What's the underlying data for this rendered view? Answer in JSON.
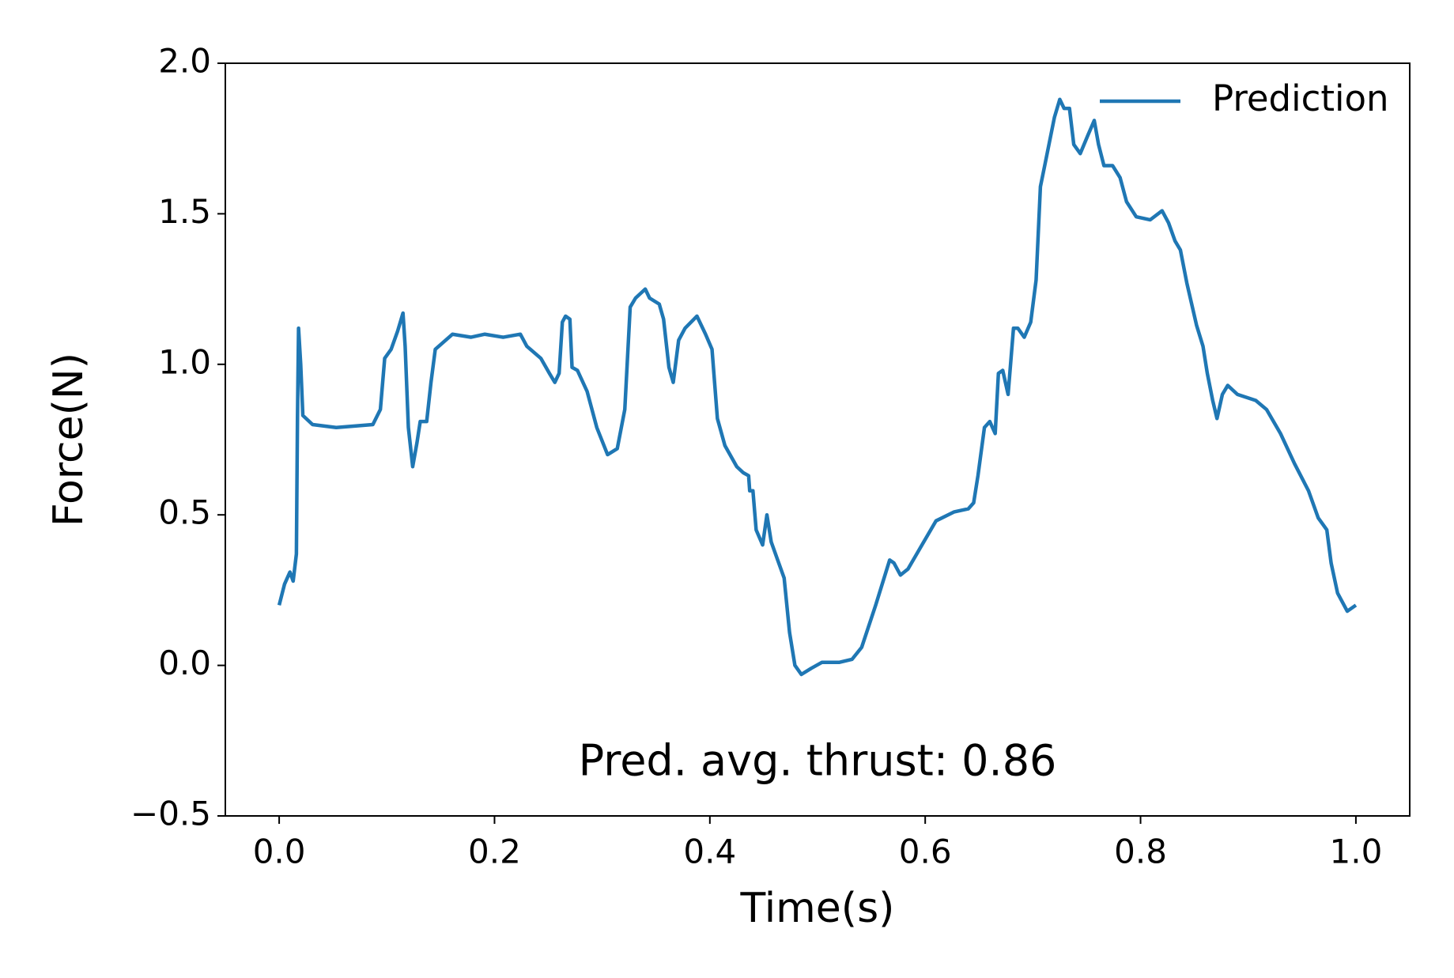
{
  "chart_data": {
    "type": "line",
    "xlabel": "Time(s)",
    "ylabel": "Force(N)",
    "annotation": "Pred. avg. thrust:  0.86",
    "x": [
      0,
      0.005,
      0.01,
      0.013,
      0.016,
      0.017,
      0.018,
      0.02,
      0.022,
      0.031,
      0.053,
      0.087,
      0.094,
      0.098,
      0.104,
      0.11,
      0.115,
      0.117,
      0.12,
      0.124,
      0.128,
      0.131,
      0.137,
      0.141,
      0.145,
      0.161,
      0.178,
      0.191,
      0.208,
      0.224,
      0.23,
      0.243,
      0.251,
      0.256,
      0.26,
      0.263,
      0.266,
      0.27,
      0.272,
      0.277,
      0.286,
      0.295,
      0.305,
      0.314,
      0.321,
      0.326,
      0.331,
      0.34,
      0.344,
      0.353,
      0.357,
      0.362,
      0.366,
      0.371,
      0.377,
      0.388,
      0.396,
      0.402,
      0.407,
      0.414,
      0.425,
      0.431,
      0.436,
      0.437,
      0.44,
      0.443,
      0.449,
      0.453,
      0.457,
      0.463,
      0.469,
      0.474,
      0.479,
      0.485,
      0.494,
      0.504,
      0.52,
      0.532,
      0.541,
      0.554,
      0.567,
      0.571,
      0.577,
      0.584,
      0.597,
      0.61,
      0.627,
      0.64,
      0.645,
      0.649,
      0.655,
      0.66,
      0.665,
      0.668,
      0.672,
      0.677,
      0.682,
      0.686,
      0.692,
      0.698,
      0.703,
      0.707,
      0.711,
      0.72,
      0.725,
      0.729,
      0.734,
      0.738,
      0.744,
      0.751,
      0.757,
      0.761,
      0.766,
      0.774,
      0.781,
      0.787,
      0.796,
      0.809,
      0.82,
      0.826,
      0.832,
      0.837,
      0.843,
      0.852,
      0.858,
      0.862,
      0.867,
      0.871,
      0.876,
      0.881,
      0.89,
      0.907,
      0.917,
      0.93,
      0.943,
      0.956,
      0.965,
      0.969,
      0.973,
      0.977,
      0.983,
      0.992,
      1.0
    ],
    "series": [
      {
        "name": "Prediction",
        "color": "#1f77b4",
        "values": [
          0.2,
          0.27,
          0.31,
          0.28,
          0.37,
          0.82,
          1.12,
          1.0,
          0.83,
          0.8,
          0.79,
          0.8,
          0.85,
          1.02,
          1.05,
          1.11,
          1.17,
          1.06,
          0.79,
          0.66,
          0.74,
          0.81,
          0.81,
          0.94,
          1.05,
          1.1,
          1.09,
          1.1,
          1.09,
          1.1,
          1.06,
          1.02,
          0.97,
          0.94,
          0.97,
          1.14,
          1.16,
          1.15,
          0.99,
          0.98,
          0.91,
          0.79,
          0.7,
          0.72,
          0.85,
          1.19,
          1.22,
          1.25,
          1.22,
          1.2,
          1.15,
          0.99,
          0.94,
          1.08,
          1.12,
          1.16,
          1.1,
          1.05,
          0.82,
          0.73,
          0.66,
          0.64,
          0.63,
          0.58,
          0.58,
          0.45,
          0.4,
          0.5,
          0.41,
          0.35,
          0.29,
          0.11,
          0.0,
          -0.03,
          -0.01,
          0.01,
          0.01,
          0.02,
          0.06,
          0.2,
          0.35,
          0.34,
          0.3,
          0.32,
          0.4,
          0.48,
          0.51,
          0.52,
          0.54,
          0.63,
          0.79,
          0.81,
          0.77,
          0.97,
          0.98,
          0.9,
          1.12,
          1.12,
          1.09,
          1.14,
          1.28,
          1.59,
          1.66,
          1.82,
          1.88,
          1.85,
          1.85,
          1.73,
          1.7,
          1.76,
          1.81,
          1.73,
          1.66,
          1.66,
          1.62,
          1.54,
          1.49,
          1.48,
          1.51,
          1.47,
          1.41,
          1.38,
          1.27,
          1.13,
          1.06,
          0.97,
          0.88,
          0.82,
          0.9,
          0.93,
          0.9,
          0.88,
          0.85,
          0.77,
          0.67,
          0.58,
          0.49,
          0.47,
          0.45,
          0.34,
          0.24,
          0.18,
          0.2
        ]
      }
    ],
    "xlim": [
      -0.05,
      1.05
    ],
    "ylim": [
      -0.5,
      2.0
    ],
    "xticks": [
      {
        "value": 0,
        "label": "0.0"
      },
      {
        "value": 0.2,
        "label": "0.2"
      },
      {
        "value": 0.4,
        "label": "0.4"
      },
      {
        "value": 0.6,
        "label": "0.6"
      },
      {
        "value": 0.8,
        "label": "0.8"
      },
      {
        "value": 1,
        "label": "1.0"
      }
    ],
    "yticks": [
      {
        "value": -0.5,
        "label": "−0.5"
      },
      {
        "value": 0,
        "label": "0.0"
      },
      {
        "value": 0.5,
        "label": "0.5"
      },
      {
        "value": 1,
        "label": "1.0"
      },
      {
        "value": 1.5,
        "label": "1.5"
      },
      {
        "value": 2,
        "label": "2.0"
      }
    ],
    "legend": "upper right",
    "grid": false
  }
}
